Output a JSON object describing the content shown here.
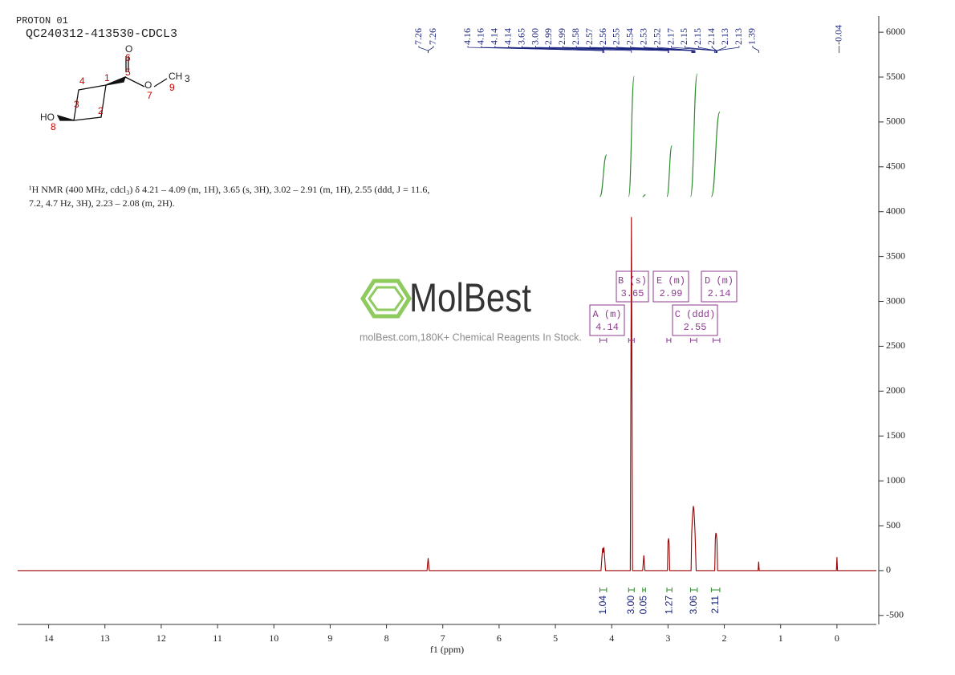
{
  "header": {
    "experiment": "PROTON 01",
    "sample": "QC240312-413530-CDCL3"
  },
  "molecule": {
    "atoms": [
      "O",
      "O",
      "CH",
      "HO"
    ],
    "subscript": "3",
    "numbers": [
      "1",
      "2",
      "3",
      "4",
      "5",
      "6",
      "7",
      "8",
      "9"
    ]
  },
  "description": [
    "¹H NMR (400 MHz, cdcl₃) δ 4.21 – 4.09 (m, 1H), 3.65 (s, 3H), 3.02 – 2.91 (m, 1H), 2.55 (ddd, J = 11.6,",
    "7.2, 4.7 Hz, 3H), 2.23 – 2.08 (m, 2H)."
  ],
  "watermark": {
    "brand": "MolBest",
    "tagline": "molBest.com,180K+ Chemical Reagents In Stock."
  },
  "chart_data": {
    "type": "nmr",
    "x_label": "f1 (ppm)",
    "color": "#9b0000",
    "integral_color": "#2e8b2e",
    "label_color": "#1a237e",
    "xlim": [
      14.55,
      -0.7
    ],
    "xticks": [
      14,
      13,
      12,
      11,
      10,
      9,
      8,
      7,
      6,
      5,
      4,
      3,
      2,
      1,
      0
    ],
    "ylim": [
      -600,
      6180
    ],
    "yticks": [
      -500,
      0,
      500,
      1000,
      1500,
      2000,
      2500,
      3000,
      3500,
      4000,
      4500,
      5000,
      5500,
      6000
    ],
    "x": [
      14.55,
      7.28,
      7.26,
      7.24,
      4.19,
      4.17,
      4.16,
      4.15,
      4.14,
      4.13,
      4.11,
      3.67,
      3.65,
      3.63,
      3.45,
      3.43,
      3.41,
      3.01,
      3.0,
      2.99,
      2.98,
      2.97,
      2.59,
      2.58,
      2.57,
      2.56,
      2.55,
      2.54,
      2.53,
      2.52,
      2.5,
      2.17,
      2.16,
      2.15,
      2.14,
      2.13,
      2.12,
      1.4,
      1.39,
      1.38,
      0.01,
      0,
      -0.01,
      -0.7
    ],
    "values": [
      0,
      0,
      140,
      0,
      0,
      180,
      250,
      200,
      260,
      190,
      0,
      0,
      3940,
      0,
      0,
      170,
      0,
      0,
      320,
      360,
      300,
      0,
      0,
      400,
      550,
      650,
      720,
      680,
      560,
      420,
      0,
      0,
      350,
      420,
      400,
      330,
      0,
      0,
      100,
      0,
      0,
      150,
      0,
      0
    ],
    "peak_labels": [
      7.26,
      7.26,
      4.16,
      4.16,
      4.14,
      4.14,
      3.65,
      {
        "value": 3,
        "label": "3.00"
      },
      2.99,
      2.99,
      2.58,
      2.57,
      2.56,
      2.55,
      2.54,
      2.53,
      2.52,
      2.17,
      2.15,
      2.15,
      2.14,
      2.13,
      2.13,
      1.39,
      -0.04
    ],
    "integrals": {
      "ranges": [
        [
          4.21,
          4.09
        ],
        [
          3.7,
          3.6
        ],
        [
          3.45,
          3.4
        ],
        [
          3.02,
          2.93
        ],
        [
          2.6,
          2.48
        ],
        [
          2.23,
          2.08
        ]
      ],
      "values": [
        1.04,
        3,
        0.05,
        1.27,
        3.06,
        2.11
      ],
      "value_labels": [
        "1.04",
        "3.00",
        "0.05",
        "1.27",
        "3.06",
        "2.11"
      ]
    },
    "multiplets": [
      {
        "name": "A (m)",
        "shift": 4.14,
        "range": [
          4.21,
          4.09
        ]
      },
      {
        "name": "B (s)",
        "shift": 3.65,
        "range": [
          3.7,
          3.6
        ]
      },
      {
        "name": "E (m)",
        "shift": 2.99,
        "range": [
          3.02,
          2.95
        ]
      },
      {
        "name": "C (ddd)",
        "shift": 2.55,
        "range": [
          2.6,
          2.49
        ]
      },
      {
        "name": "D (m)",
        "shift": 2.14,
        "range": [
          2.2,
          2.08
        ]
      }
    ]
  }
}
